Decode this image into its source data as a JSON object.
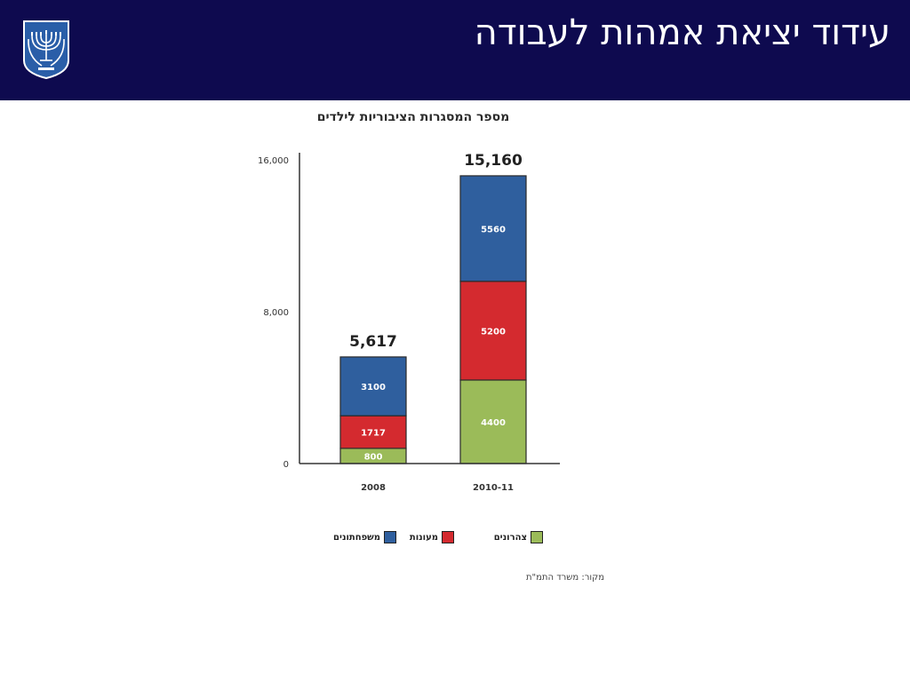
{
  "slide": {
    "title": "עידוד יציאת אמהות לעבודה"
  },
  "chart_data": {
    "type": "bar",
    "stacked": true,
    "title": "מספר המסגרות הציבוריות לילדים",
    "categories": [
      "2008",
      "2010-11"
    ],
    "series": [
      {
        "name": "צהרונים",
        "color": "#9bbb59",
        "values": [
          800,
          4400
        ]
      },
      {
        "name": "מעונות",
        "color": "#d42a2f",
        "values": [
          1717,
          5200
        ]
      },
      {
        "name": "משפחתונים",
        "color": "#2f5f9e",
        "values": [
          3100,
          5560
        ]
      }
    ],
    "totals": [
      "5,617",
      "15,160"
    ],
    "yticks": [
      "0",
      "8,000",
      "16,000"
    ],
    "ylim": [
      0,
      16000
    ],
    "legend_position": "bottom",
    "grid": false
  },
  "source": "מקור: משרד התמ\"ת"
}
